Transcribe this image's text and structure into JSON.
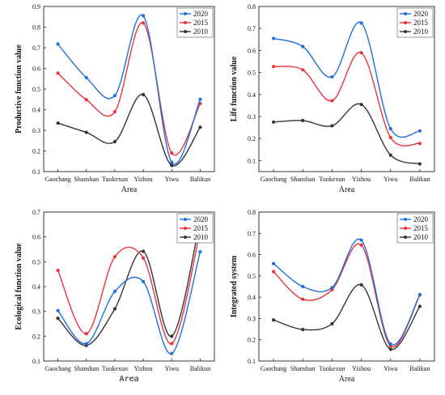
{
  "chart_data": [
    {
      "type": "line",
      "categories": [
        "Gaochang",
        "Shanshan",
        "Tuokexun",
        "Yizhou",
        "Yiwu",
        "Balikun"
      ],
      "xlabel": "Area",
      "ylabel": "Productive function value",
      "ylim": [
        0.1,
        0.9
      ],
      "yticks": [
        0.1,
        0.2,
        0.3,
        0.4,
        0.5,
        0.6,
        0.7,
        0.8,
        0.9
      ],
      "legend": "top-right",
      "grid": false,
      "series": [
        {
          "name": "2020",
          "color": "#1f6fe0",
          "values": [
            0.718,
            0.555,
            0.468,
            0.855,
            0.145,
            0.45
          ]
        },
        {
          "name": "2015",
          "color": "#e8343a",
          "values": [
            0.577,
            0.448,
            0.39,
            0.82,
            0.19,
            0.43
          ]
        },
        {
          "name": "2010",
          "color": "#333333",
          "values": [
            0.335,
            0.29,
            0.245,
            0.473,
            0.13,
            0.315
          ]
        }
      ]
    },
    {
      "type": "line",
      "categories": [
        "Gaochang",
        "Shanshan",
        "Tuokexun",
        "Yizhou",
        "Yiwu",
        "Balikun"
      ],
      "xlabel": "Area",
      "ylabel": "Life function value",
      "ylim": [
        0.05,
        0.8
      ],
      "yticks": [
        0.1,
        0.2,
        0.3,
        0.4,
        0.5,
        0.6,
        0.7,
        0.8
      ],
      "legend": "top-right",
      "grid": false,
      "series": [
        {
          "name": "2020",
          "color": "#1f6fe0",
          "values": [
            0.655,
            0.618,
            0.48,
            0.725,
            0.245,
            0.235
          ]
        },
        {
          "name": "2015",
          "color": "#e8343a",
          "values": [
            0.527,
            0.512,
            0.372,
            0.59,
            0.205,
            0.178
          ]
        },
        {
          "name": "2010",
          "color": "#333333",
          "values": [
            0.275,
            0.282,
            0.258,
            0.355,
            0.125,
            0.085
          ]
        }
      ]
    },
    {
      "type": "line",
      "categories": [
        "Gaochang",
        "Shanshan",
        "Tuokexun",
        "Yizhou",
        "Yiwu",
        "Balikun"
      ],
      "xlabel": "Area",
      "ylabel": "Ecological function value",
      "ylim": [
        0.1,
        0.7
      ],
      "yticks": [
        0.1,
        0.2,
        0.3,
        0.4,
        0.5,
        0.6,
        0.7
      ],
      "legend": "top-right",
      "grid": false,
      "series": [
        {
          "name": "2020",
          "color": "#1f6fe0",
          "values": [
            0.303,
            0.17,
            0.38,
            0.42,
            0.13,
            0.54
          ]
        },
        {
          "name": "2015",
          "color": "#e8343a",
          "values": [
            0.465,
            0.21,
            0.52,
            0.515,
            0.17,
            0.625
          ]
        },
        {
          "name": "2010",
          "color": "#333333",
          "values": [
            0.272,
            0.163,
            0.31,
            0.542,
            0.2,
            0.665
          ]
        }
      ]
    },
    {
      "type": "line",
      "categories": [
        "Gaochang",
        "Shanshan",
        "Tuokexun",
        "Yizhou",
        "Yiwu",
        "Balikun"
      ],
      "xlabel": "Area",
      "ylabel": "Integrated system",
      "ylim": [
        0.1,
        0.8
      ],
      "yticks": [
        0.1,
        0.2,
        0.3,
        0.4,
        0.5,
        0.6,
        0.7,
        0.8
      ],
      "legend": "top-right",
      "grid": false,
      "series": [
        {
          "name": "2020",
          "color": "#1f6fe0",
          "values": [
            0.558,
            0.45,
            0.445,
            0.668,
            0.18,
            0.412
          ]
        },
        {
          "name": "2015",
          "color": "#e8343a",
          "values": [
            0.52,
            0.39,
            0.435,
            0.645,
            0.17,
            0.41
          ]
        },
        {
          "name": "2010",
          "color": "#333333",
          "values": [
            0.293,
            0.248,
            0.275,
            0.458,
            0.155,
            0.357
          ]
        }
      ]
    }
  ]
}
